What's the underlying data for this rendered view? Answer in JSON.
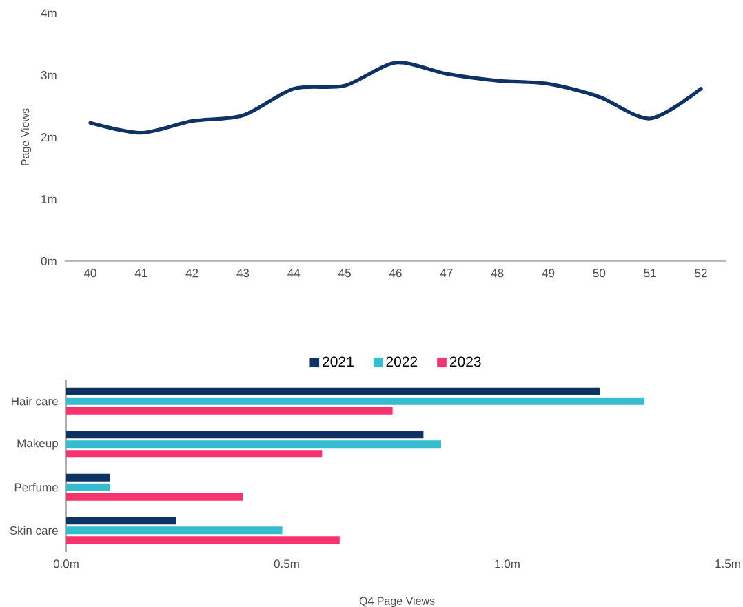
{
  "chart_data": [
    {
      "type": "line",
      "ylabel": "Page Views",
      "x": [
        40,
        41,
        42,
        43,
        44,
        45,
        46,
        47,
        48,
        49,
        50,
        51,
        52
      ],
      "values": [
        2.23,
        2.07,
        2.26,
        2.35,
        2.78,
        2.83,
        3.2,
        3.02,
        2.91,
        2.86,
        2.65,
        2.3,
        2.78
      ],
      "color": "#0e3263",
      "marker": "none",
      "line_style": "solid",
      "xlim": [
        39.5,
        52.5
      ],
      "ylim": [
        0,
        4
      ],
      "xticks": [
        40,
        41,
        42,
        43,
        44,
        45,
        46,
        47,
        48,
        49,
        50,
        51,
        52
      ],
      "yticks": [
        {
          "value": 0,
          "label": "0m"
        },
        {
          "value": 1,
          "label": "1m"
        },
        {
          "value": 2,
          "label": "2m"
        },
        {
          "value": 3,
          "label": "3m"
        },
        {
          "value": 4,
          "label": "4m"
        }
      ]
    },
    {
      "type": "bar",
      "orientation": "horizontal",
      "xlabel": "Q4 Page Views",
      "legend": "top",
      "categories": [
        "Hair care",
        "Makeup",
        "Perfume",
        "Skin care"
      ],
      "series": [
        {
          "name": "2021",
          "color": "#0e3263",
          "values": [
            1.21,
            0.81,
            0.1,
            0.25
          ]
        },
        {
          "name": "2022",
          "color": "#35bcd1",
          "values": [
            1.31,
            0.85,
            0.1,
            0.49
          ]
        },
        {
          "name": "2023",
          "color": "#f4336f",
          "values": [
            0.74,
            0.58,
            0.4,
            0.62
          ]
        }
      ],
      "xlim": [
        0,
        1.5
      ],
      "xticks": [
        {
          "value": 0,
          "label": "0.0m"
        },
        {
          "value": 0.5,
          "label": "0.5m"
        },
        {
          "value": 1,
          "label": "1.0m"
        },
        {
          "value": 1.5,
          "label": "1.5m"
        }
      ]
    }
  ]
}
